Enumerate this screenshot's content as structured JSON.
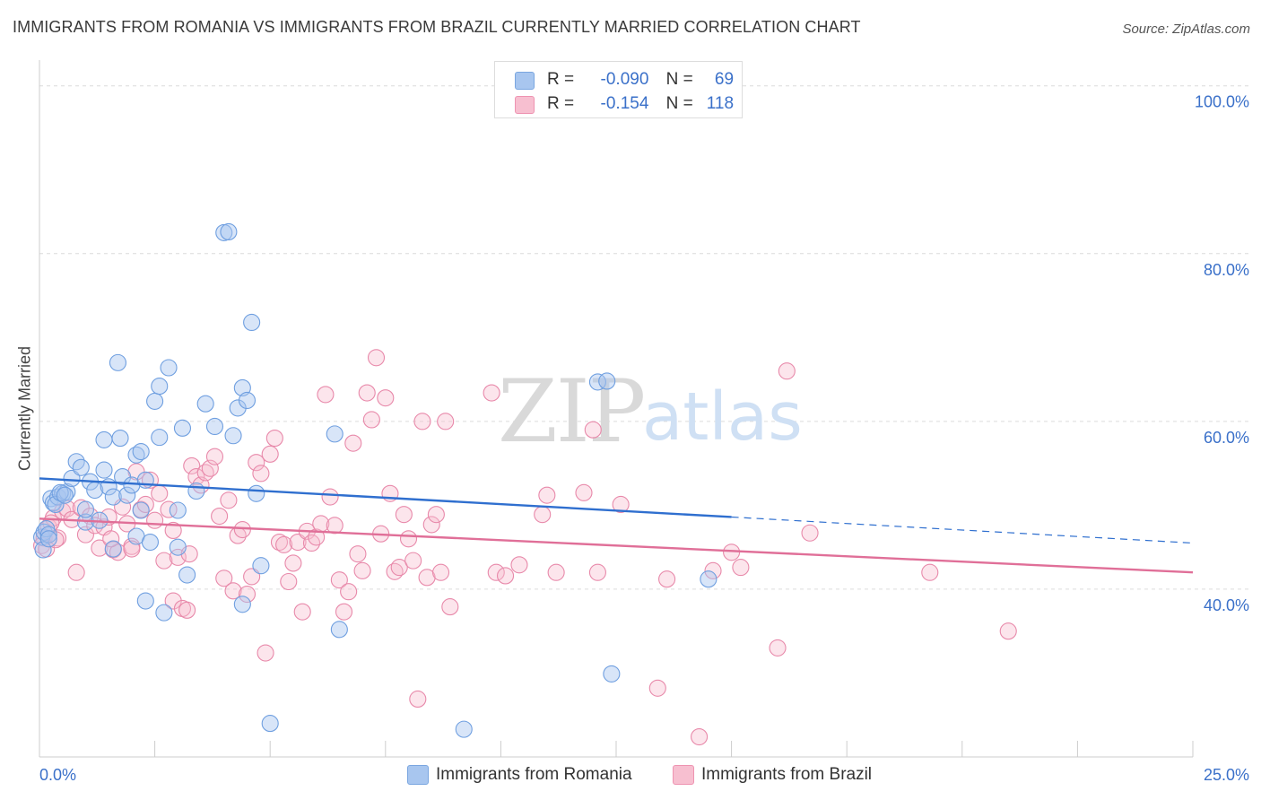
{
  "title": "IMMIGRANTS FROM ROMANIA VS IMMIGRANTS FROM BRAZIL CURRENTLY MARRIED CORRELATION CHART",
  "source": "Source: ZipAtlas.com",
  "watermark": {
    "zip": "ZIP",
    "atlas": "atlas"
  },
  "stats": [
    {
      "r_label": "R =",
      "r_value": "-0.090",
      "n_label": "N =",
      "n_value": "69",
      "color": "#a8c6ef",
      "border": "#7aa6e0"
    },
    {
      "r_label": "R =",
      "r_value": "-0.154",
      "n_label": "N =",
      "n_value": "118",
      "color": "#f7bfd0",
      "border": "#ee93b1"
    }
  ],
  "legend": [
    {
      "label": "Immigrants from Romania",
      "color": "#a8c6ef",
      "border": "#7aa6e0"
    },
    {
      "label": "Immigrants from Brazil",
      "color": "#f7bfd0",
      "border": "#ee93b1"
    }
  ],
  "chart_data": {
    "type": "scatter",
    "ylabel": "Currently Married",
    "xlabel": "",
    "xlim": [
      0,
      25
    ],
    "ylim": [
      20,
      102
    ],
    "x_tick_labels": [
      "0.0%",
      "25.0%"
    ],
    "y_tick_labels": [
      "40.0%",
      "60.0%",
      "80.0%",
      "100.0%"
    ],
    "y_ticks": [
      40,
      60,
      80,
      100
    ],
    "grid": "horizontal dashed",
    "series": [
      {
        "name": "Immigrants from Romania",
        "color": "#6f9fe0",
        "fill": "rgba(168,198,239,0.45)",
        "trend": {
          "x0": 0,
          "y0": 53.2,
          "x1": 15,
          "y1": 48.6,
          "dash_to_x": 25,
          "dash_to_y": 45.5,
          "color": "#2f6fcf"
        },
        "points": [
          [
            0.05,
            46.2
          ],
          [
            0.1,
            46.8
          ],
          [
            0.15,
            47.2
          ],
          [
            0.2,
            46.5
          ],
          [
            0.25,
            50.8
          ],
          [
            0.3,
            50.3
          ],
          [
            0.4,
            51.0
          ],
          [
            0.5,
            51.4
          ],
          [
            0.6,
            51.6
          ],
          [
            0.7,
            53.2
          ],
          [
            0.8,
            55.2
          ],
          [
            0.9,
            54.5
          ],
          [
            1.0,
            48.0
          ],
          [
            1.0,
            49.5
          ],
          [
            1.1,
            52.8
          ],
          [
            1.2,
            51.8
          ],
          [
            1.3,
            48.2
          ],
          [
            1.4,
            54.2
          ],
          [
            1.4,
            57.8
          ],
          [
            1.5,
            52.2
          ],
          [
            1.6,
            44.8
          ],
          [
            1.6,
            51.0
          ],
          [
            1.7,
            67.0
          ],
          [
            1.75,
            58.0
          ],
          [
            1.8,
            53.4
          ],
          [
            1.9,
            51.2
          ],
          [
            2.0,
            52.4
          ],
          [
            2.1,
            56.0
          ],
          [
            2.1,
            46.3
          ],
          [
            2.2,
            56.4
          ],
          [
            2.2,
            49.4
          ],
          [
            2.3,
            53.0
          ],
          [
            2.3,
            38.6
          ],
          [
            2.4,
            45.6
          ],
          [
            2.5,
            62.4
          ],
          [
            2.6,
            58.1
          ],
          [
            2.6,
            64.2
          ],
          [
            2.7,
            37.2
          ],
          [
            2.8,
            66.4
          ],
          [
            3.0,
            49.4
          ],
          [
            3.0,
            45.0
          ],
          [
            3.1,
            59.2
          ],
          [
            3.2,
            41.7
          ],
          [
            3.4,
            51.7
          ],
          [
            3.6,
            62.1
          ],
          [
            3.8,
            59.4
          ],
          [
            4.0,
            82.5
          ],
          [
            4.1,
            82.6
          ],
          [
            4.2,
            58.3
          ],
          [
            4.3,
            61.6
          ],
          [
            4.4,
            64.0
          ],
          [
            4.4,
            38.2
          ],
          [
            4.5,
            62.5
          ],
          [
            4.6,
            71.8
          ],
          [
            4.7,
            51.4
          ],
          [
            4.8,
            42.8
          ],
          [
            5.0,
            24.0
          ],
          [
            6.4,
            58.5
          ],
          [
            6.5,
            35.2
          ],
          [
            9.2,
            23.3
          ],
          [
            12.1,
            64.7
          ],
          [
            12.3,
            64.8
          ],
          [
            12.4,
            29.9
          ],
          [
            14.5,
            41.2
          ],
          [
            0.08,
            44.7
          ],
          [
            0.2,
            46.0
          ],
          [
            0.35,
            50.1
          ],
          [
            0.45,
            51.5
          ],
          [
            0.55,
            51.2
          ]
        ]
      },
      {
        "name": "Immigrants from Brazil",
        "color": "#e889aa",
        "fill": "rgba(247,191,208,0.40)",
        "trend": {
          "x0": 0,
          "y0": 48.4,
          "x1": 25,
          "y1": 42.0,
          "color": "#e06f98"
        },
        "points": [
          [
            0.1,
            46.1
          ],
          [
            0.2,
            47.4
          ],
          [
            0.3,
            48.5
          ],
          [
            0.4,
            46.1
          ],
          [
            0.5,
            49.3
          ],
          [
            0.6,
            49.6
          ],
          [
            0.7,
            48.3
          ],
          [
            0.8,
            42.0
          ],
          [
            0.9,
            49.7
          ],
          [
            1.0,
            46.5
          ],
          [
            1.1,
            48.7
          ],
          [
            1.2,
            47.6
          ],
          [
            1.3,
            44.9
          ],
          [
            1.4,
            47.4
          ],
          [
            1.5,
            48.6
          ],
          [
            1.6,
            44.7
          ],
          [
            1.7,
            44.4
          ],
          [
            1.8,
            49.8
          ],
          [
            1.9,
            47.8
          ],
          [
            2.0,
            45.1
          ],
          [
            2.0,
            44.8
          ],
          [
            2.1,
            54.0
          ],
          [
            2.2,
            49.5
          ],
          [
            2.3,
            50.1
          ],
          [
            2.4,
            53.0
          ],
          [
            2.5,
            48.2
          ],
          [
            2.6,
            51.4
          ],
          [
            2.7,
            43.4
          ],
          [
            2.8,
            49.5
          ],
          [
            2.9,
            38.6
          ],
          [
            2.9,
            47.0
          ],
          [
            3.0,
            43.8
          ],
          [
            3.1,
            37.7
          ],
          [
            3.2,
            37.5
          ],
          [
            3.3,
            54.7
          ],
          [
            3.4,
            53.4
          ],
          [
            3.5,
            52.4
          ],
          [
            3.6,
            53.9
          ],
          [
            3.7,
            54.4
          ],
          [
            3.8,
            55.8
          ],
          [
            3.9,
            48.7
          ],
          [
            4.0,
            41.3
          ],
          [
            4.1,
            50.6
          ],
          [
            4.2,
            39.8
          ],
          [
            4.3,
            46.4
          ],
          [
            4.4,
            47.1
          ],
          [
            4.5,
            39.4
          ],
          [
            4.6,
            41.5
          ],
          [
            4.7,
            55.1
          ],
          [
            4.8,
            53.8
          ],
          [
            4.9,
            32.4
          ],
          [
            5.0,
            56.1
          ],
          [
            5.1,
            58.0
          ],
          [
            5.2,
            45.6
          ],
          [
            5.3,
            45.3
          ],
          [
            5.4,
            40.9
          ],
          [
            5.5,
            43.1
          ],
          [
            5.6,
            45.6
          ],
          [
            5.7,
            37.3
          ],
          [
            5.8,
            46.9
          ],
          [
            5.9,
            45.5
          ],
          [
            6.0,
            46.2
          ],
          [
            6.1,
            47.8
          ],
          [
            6.2,
            63.2
          ],
          [
            6.3,
            51.0
          ],
          [
            6.4,
            47.6
          ],
          [
            6.5,
            41.1
          ],
          [
            6.6,
            37.3
          ],
          [
            6.7,
            39.7
          ],
          [
            6.8,
            57.4
          ],
          [
            6.9,
            44.2
          ],
          [
            7.0,
            42.2
          ],
          [
            7.1,
            63.4
          ],
          [
            7.2,
            60.2
          ],
          [
            7.3,
            67.6
          ],
          [
            7.4,
            46.6
          ],
          [
            7.5,
            62.8
          ],
          [
            7.6,
            51.4
          ],
          [
            7.7,
            42.1
          ],
          [
            7.8,
            42.6
          ],
          [
            7.9,
            48.9
          ],
          [
            8.0,
            46.0
          ],
          [
            8.1,
            43.4
          ],
          [
            8.2,
            26.9
          ],
          [
            8.3,
            60.0
          ],
          [
            8.4,
            41.4
          ],
          [
            8.5,
            47.7
          ],
          [
            8.6,
            48.9
          ],
          [
            8.7,
            42.0
          ],
          [
            8.8,
            60.0
          ],
          [
            8.9,
            37.9
          ],
          [
            9.8,
            63.4
          ],
          [
            9.9,
            42.0
          ],
          [
            10.1,
            41.6
          ],
          [
            10.4,
            42.9
          ],
          [
            10.9,
            48.9
          ],
          [
            11.0,
            51.2
          ],
          [
            11.2,
            42.0
          ],
          [
            11.8,
            51.5
          ],
          [
            12.0,
            59.0
          ],
          [
            12.1,
            42.0
          ],
          [
            12.6,
            50.1
          ],
          [
            13.4,
            28.2
          ],
          [
            13.6,
            41.2
          ],
          [
            14.3,
            22.4
          ],
          [
            14.6,
            42.2
          ],
          [
            15.0,
            44.4
          ],
          [
            15.2,
            42.6
          ],
          [
            16.0,
            33.0
          ],
          [
            16.2,
            66.0
          ],
          [
            16.7,
            46.7
          ],
          [
            19.3,
            42.0
          ],
          [
            21.0,
            35.0
          ],
          [
            0.05,
            45.2
          ],
          [
            0.15,
            44.8
          ],
          [
            0.25,
            47.9
          ],
          [
            0.35,
            45.9
          ],
          [
            1.55,
            46.0
          ],
          [
            3.25,
            44.2
          ]
        ]
      }
    ]
  }
}
